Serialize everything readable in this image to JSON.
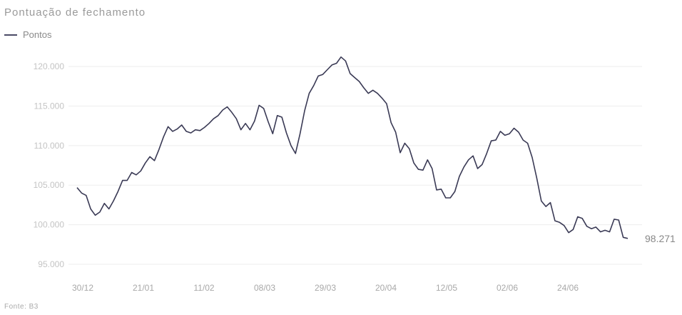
{
  "header": {
    "subtitle": "Pontuação de fechamento"
  },
  "footer": {
    "source": "Fonte: B3"
  },
  "chart_data": {
    "type": "line",
    "title": "",
    "subtitle": "Pontuação de fechamento",
    "legend": [
      "Pontos"
    ],
    "legend_position": "top-left",
    "grid": true,
    "xlabel": "",
    "ylabel": "",
    "ylim": [
      95000,
      121000
    ],
    "y_ticks": [
      95000,
      100000,
      105000,
      110000,
      115000,
      120000
    ],
    "y_tick_labels": [
      "95.000",
      "100.000",
      "105.000",
      "110.000",
      "115.000",
      "120.000"
    ],
    "x_tick_labels": [
      "30/12",
      "21/01",
      "11/02",
      "08/03",
      "29/03",
      "20/04",
      "12/05",
      "02/06",
      "24/06"
    ],
    "end_label": "98.271",
    "line_color": "#3a3a55",
    "series": [
      {
        "name": "Pontos",
        "values": [
          104700,
          104000,
          103700,
          102000,
          101200,
          101600,
          102700,
          102000,
          103000,
          104200,
          105600,
          105600,
          106600,
          106300,
          106800,
          107800,
          108600,
          108100,
          109500,
          111100,
          112400,
          111800,
          112100,
          112600,
          111800,
          111600,
          112000,
          111900,
          112300,
          112800,
          113400,
          113800,
          114500,
          114900,
          114200,
          113400,
          112000,
          112800,
          112000,
          113100,
          115100,
          114700,
          113000,
          111500,
          113800,
          113600,
          111600,
          110000,
          109000,
          111500,
          114400,
          116600,
          117600,
          118800,
          119000,
          119600,
          120200,
          120400,
          121200,
          120700,
          119100,
          118600,
          118100,
          117300,
          116600,
          117000,
          116600,
          116000,
          115300,
          112900,
          111700,
          109100,
          110300,
          109600,
          107800,
          107000,
          106900,
          108200,
          107100,
          104400,
          104500,
          103400,
          103400,
          104200,
          106100,
          107300,
          108200,
          108700,
          107100,
          107600,
          109000,
          110600,
          110700,
          111800,
          111300,
          111500,
          112200,
          111700,
          110700,
          110300,
          108500,
          105900,
          103000,
          102300,
          102800,
          100500,
          100300,
          99900,
          99000,
          99400,
          101000,
          100800,
          99800,
          99500,
          99700,
          99100,
          99300,
          99100,
          100700,
          100600,
          98400,
          98271
        ]
      }
    ]
  }
}
